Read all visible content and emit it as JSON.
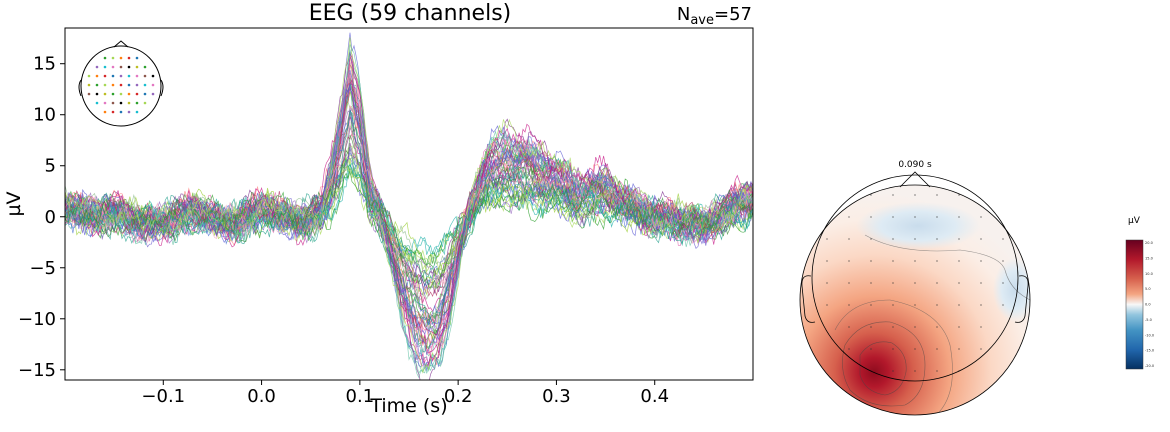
{
  "chart_data": [
    {
      "type": "line",
      "title": "EEG (59 channels)",
      "annotation": {
        "text": "N",
        "sub": "ave",
        "suffix": "=57"
      },
      "xlabel": "Time (s)",
      "ylabel": "µV",
      "xlim": [
        -0.2,
        0.5
      ],
      "ylim": [
        -16,
        18.5
      ],
      "xticks": [
        -0.1,
        0.0,
        0.1,
        0.2,
        0.3,
        0.4
      ],
      "xtick_labels": [
        "−0.1",
        "0.0",
        "0.1",
        "0.2",
        "0.3",
        "0.4"
      ],
      "yticks": [
        -15,
        -10,
        -5,
        0,
        5,
        10,
        15
      ],
      "ytick_labels": [
        "−15",
        "−10",
        "−5",
        "0",
        "5",
        "10",
        "15"
      ],
      "channel_count": 59,
      "mean_waveform": {
        "x": [
          -0.2,
          -0.17,
          -0.15,
          -0.12,
          -0.1,
          -0.07,
          -0.05,
          -0.03,
          0.0,
          0.02,
          0.04,
          0.06,
          0.07,
          0.08,
          0.09,
          0.1,
          0.11,
          0.12,
          0.13,
          0.14,
          0.15,
          0.16,
          0.17,
          0.18,
          0.19,
          0.2,
          0.21,
          0.22,
          0.23,
          0.25,
          0.27,
          0.3,
          0.32,
          0.35,
          0.37,
          0.4,
          0.42,
          0.45,
          0.47,
          0.5
        ],
        "y": [
          1.0,
          0.3,
          0.5,
          -0.8,
          -0.5,
          0.5,
          0.0,
          -0.8,
          0.8,
          0.3,
          -0.5,
          0.5,
          3.5,
          8.0,
          13.0,
          9.0,
          3.0,
          0.5,
          -3.0,
          -6.5,
          -9.0,
          -11.0,
          -12.0,
          -11.0,
          -8.0,
          -4.0,
          0.0,
          3.0,
          5.0,
          6.0,
          5.5,
          4.0,
          2.5,
          3.0,
          1.5,
          0.0,
          -0.5,
          -1.0,
          0.5,
          2.0
        ]
      },
      "legend_placement": "top-left",
      "sensor_inset": "head outline with colored channel dots"
    },
    {
      "type": "heatmap",
      "time_label": "0.090 s",
      "colorbar_label": "µV",
      "colorbar_ticks": [
        "20.0",
        "15.0",
        "10.0",
        "5.0",
        "0.0",
        "-5.0",
        "-10.0",
        "-15.0",
        "-20.0"
      ],
      "colormap": "RdBu_r",
      "peak": "left posterior positive",
      "min": "frontal weak negative"
    }
  ]
}
